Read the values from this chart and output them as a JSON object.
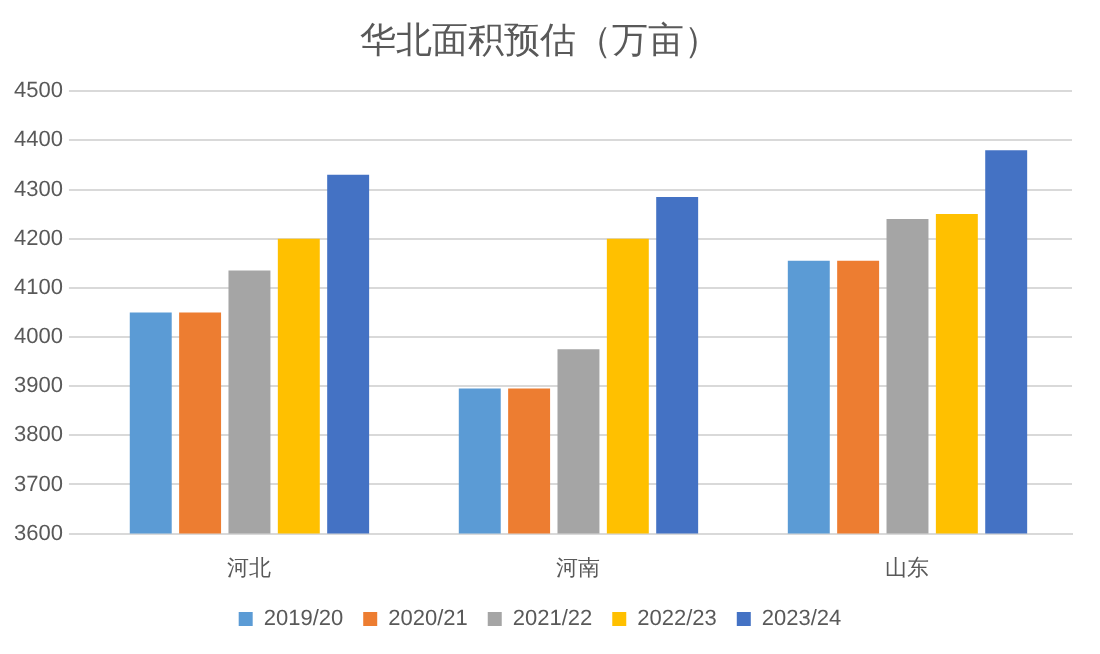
{
  "chart_data": {
    "type": "bar",
    "title": "华北面积预估（万亩）",
    "categories": [
      "河北",
      "河南",
      "山东"
    ],
    "series": [
      {
        "name": "2019/20",
        "color": "#5b9bd5",
        "values": [
          4050,
          3895,
          4155
        ]
      },
      {
        "name": "2020/21",
        "color": "#ed7d31",
        "values": [
          4050,
          3895,
          4155
        ]
      },
      {
        "name": "2021/22",
        "color": "#a5a5a5",
        "values": [
          4135,
          3975,
          4240
        ]
      },
      {
        "name": "2022/23",
        "color": "#ffc000",
        "values": [
          4200,
          4200,
          4250
        ]
      },
      {
        "name": "2023/24",
        "color": "#4472c4",
        "values": [
          4330,
          4285,
          4380
        ]
      }
    ],
    "ylim": [
      3600,
      4500
    ],
    "yticks": [
      3600,
      3700,
      3800,
      3900,
      4000,
      4100,
      4200,
      4300,
      4400,
      4500
    ],
    "grid": "y",
    "legend": "bottom"
  }
}
